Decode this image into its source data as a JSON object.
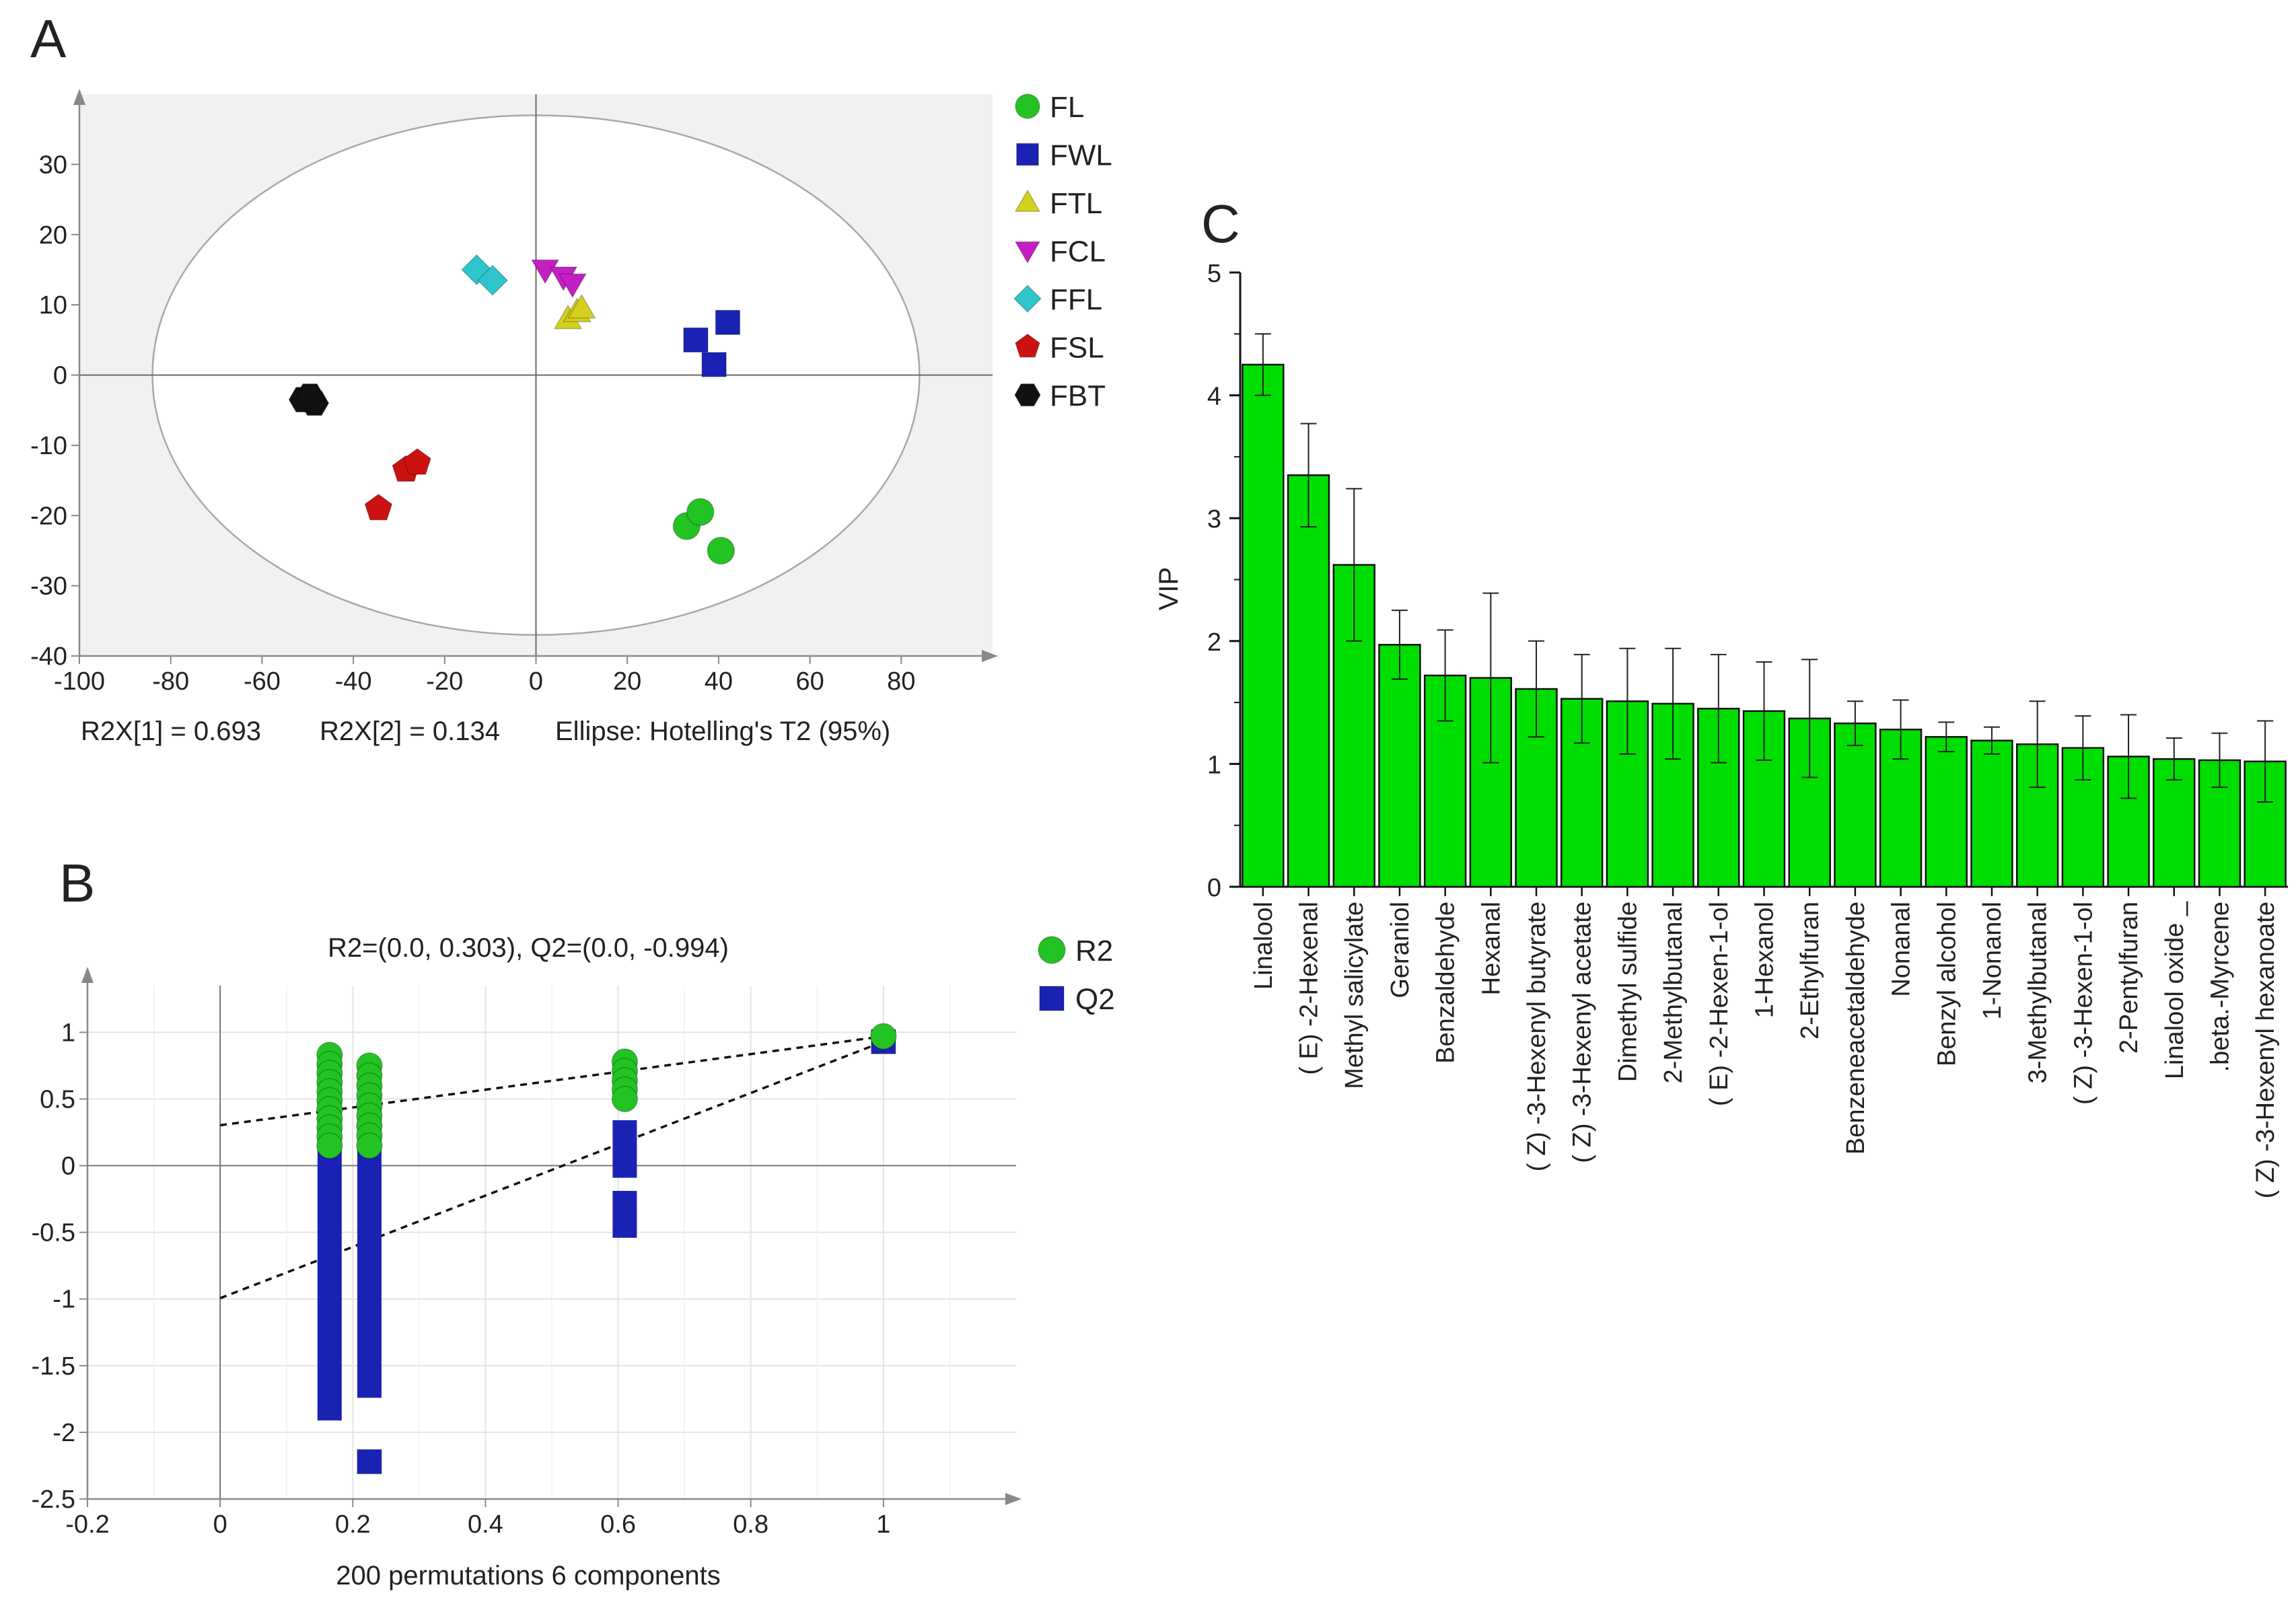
{
  "panels": {
    "a": {
      "label": "A",
      "footnotes": [
        "R2X[1] = 0.693",
        "R2X[2] = 0.134",
        "Ellipse: Hotelling's T2 (95%)"
      ]
    },
    "b": {
      "label": "B",
      "title": "R2=(0.0, 0.303), Q2=(0.0, -0.994)",
      "xlabel": "200 permutations 6 components"
    },
    "c": {
      "label": "C",
      "ylabel": "VIP"
    }
  },
  "chart_data": [
    {
      "type": "scatter",
      "title": "",
      "xlim": [
        -100,
        100
      ],
      "ylim": [
        -40,
        40
      ],
      "xticks": [
        -100,
        -80,
        -60,
        -40,
        -20,
        0,
        20,
        40,
        60,
        80
      ],
      "yticks": [
        -40,
        -30,
        -20,
        -10,
        0,
        10,
        20,
        30
      ],
      "ellipse": {
        "cx": 0,
        "cy": 0,
        "rx": 84,
        "ry": 37
      },
      "legend": "top-right",
      "series": [
        {
          "name": "FL",
          "marker": "circle",
          "color": "#22c322",
          "points": [
            [
              33,
              -21.5
            ],
            [
              36,
              -19.5
            ],
            [
              40.5,
              -25
            ]
          ]
        },
        {
          "name": "FWL",
          "marker": "square",
          "color": "#1a22b4",
          "points": [
            [
              35,
              5
            ],
            [
              42,
              7.5
            ],
            [
              39,
              1.5
            ]
          ]
        },
        {
          "name": "FTL",
          "marker": "triangle",
          "color": "#d4d11e",
          "points": [
            [
              7,
              8
            ],
            [
              9,
              9
            ],
            [
              10,
              9.5
            ]
          ]
        },
        {
          "name": "FCL",
          "marker": "triangle-down",
          "color": "#c41fc4",
          "points": [
            [
              2,
              15
            ],
            [
              6,
              14
            ],
            [
              8,
              13
            ]
          ]
        },
        {
          "name": "FFL",
          "marker": "diamond",
          "color": "#2ec6cc",
          "points": [
            [
              -13,
              15
            ],
            [
              -9.5,
              13.5
            ]
          ]
        },
        {
          "name": "FSL",
          "marker": "pentagon",
          "color": "#cc1111",
          "points": [
            [
              -28.5,
              -13.5
            ],
            [
              -26,
              -12.5
            ],
            [
              -34.5,
              -19
            ]
          ]
        },
        {
          "name": "FBT",
          "marker": "hexagon",
          "color": "#111111",
          "points": [
            [
              -51,
              -3.5
            ],
            [
              -48.5,
              -4
            ],
            [
              -49.5,
              -3
            ]
          ]
        }
      ]
    },
    {
      "type": "scatter",
      "title": "R2=(0.0, 0.303), Q2=(0.0, -0.994)",
      "xlabel": "200 permutations 6 components",
      "xlim": [
        -0.2,
        1.2
      ],
      "ylim": [
        -2.5,
        1.35
      ],
      "xticks": [
        -0.2,
        0,
        0.2,
        0.4,
        0.6,
        0.8,
        1
      ],
      "yticks": [
        -2.5,
        -2,
        -1.5,
        -1,
        -0.5,
        0,
        0.5,
        1
      ],
      "legend": "top-right",
      "series": [
        {
          "name": "R2",
          "marker": "circle",
          "color": "#22c322",
          "columns": [
            {
              "x": 0.165,
              "min": 0.15,
              "max": 0.83
            },
            {
              "x": 0.225,
              "min": 0.15,
              "max": 0.75
            },
            {
              "x": 0.61,
              "min": 0.5,
              "max": 0.78
            }
          ],
          "points": [
            [
              1,
              0.97
            ]
          ]
        },
        {
          "name": "Q2",
          "marker": "square",
          "color": "#1a22b4",
          "columns": [
            {
              "x": 0.165,
              "min": -1.82,
              "max": 0.62
            },
            {
              "x": 0.225,
              "min": -1.65,
              "max": 0.32
            },
            {
              "x": 0.61,
              "min": 0.0,
              "max": 0.25
            },
            {
              "x": 0.61,
              "min": -0.45,
              "max": -0.28
            }
          ],
          "points": [
            [
              1,
              0.93
            ],
            [
              0.225,
              -2.22
            ]
          ]
        }
      ],
      "regression_lines": [
        {
          "name": "R2",
          "x": [
            0,
            1
          ],
          "y": [
            0.303,
            0.97
          ]
        },
        {
          "name": "Q2",
          "x": [
            0,
            1
          ],
          "y": [
            -0.994,
            0.93
          ]
        }
      ]
    },
    {
      "type": "bar",
      "ylabel": "VIP",
      "ylim": [
        0,
        5
      ],
      "yticks": [
        0,
        1,
        2,
        3,
        4,
        5
      ],
      "bar_color": "#00dd00",
      "categories": [
        "Linalool",
        "( E) -2-Hexenal",
        "Methyl salicylate",
        "Geraniol",
        "Benzaldehyde",
        "Hexanal",
        "( Z) -3-Hexenyl butyrate",
        "( Z) -3-Hexenyl acetate",
        "Dimethyl sulfide",
        "2-Methylbutanal",
        "( E) -2-Hexen-1-ol",
        "1-Hexanol",
        "2-Ethylfuran",
        "Benzeneacetaldehyde",
        "Nonanal",
        "Benzyl alcohol",
        "1-Nonanol",
        "3-Methylbutanal",
        "( Z) -3-Hexen-1-ol",
        "2-Pentylfuran",
        "Linalool oxide _",
        ".beta.-Myrcene",
        "( Z) -3-Hexenyl hexanoate"
      ],
      "values": [
        4.25,
        3.35,
        2.62,
        1.97,
        1.72,
        1.7,
        1.61,
        1.53,
        1.51,
        1.49,
        1.45,
        1.43,
        1.37,
        1.33,
        1.28,
        1.22,
        1.19,
        1.16,
        1.13,
        1.06,
        1.04,
        1.03,
        1.02
      ],
      "errors": [
        0.25,
        0.42,
        0.62,
        0.28,
        0.37,
        0.69,
        0.39,
        0.36,
        0.43,
        0.45,
        0.44,
        0.4,
        0.48,
        0.18,
        0.24,
        0.12,
        0.11,
        0.35,
        0.26,
        0.34,
        0.17,
        0.22,
        0.33
      ]
    }
  ]
}
